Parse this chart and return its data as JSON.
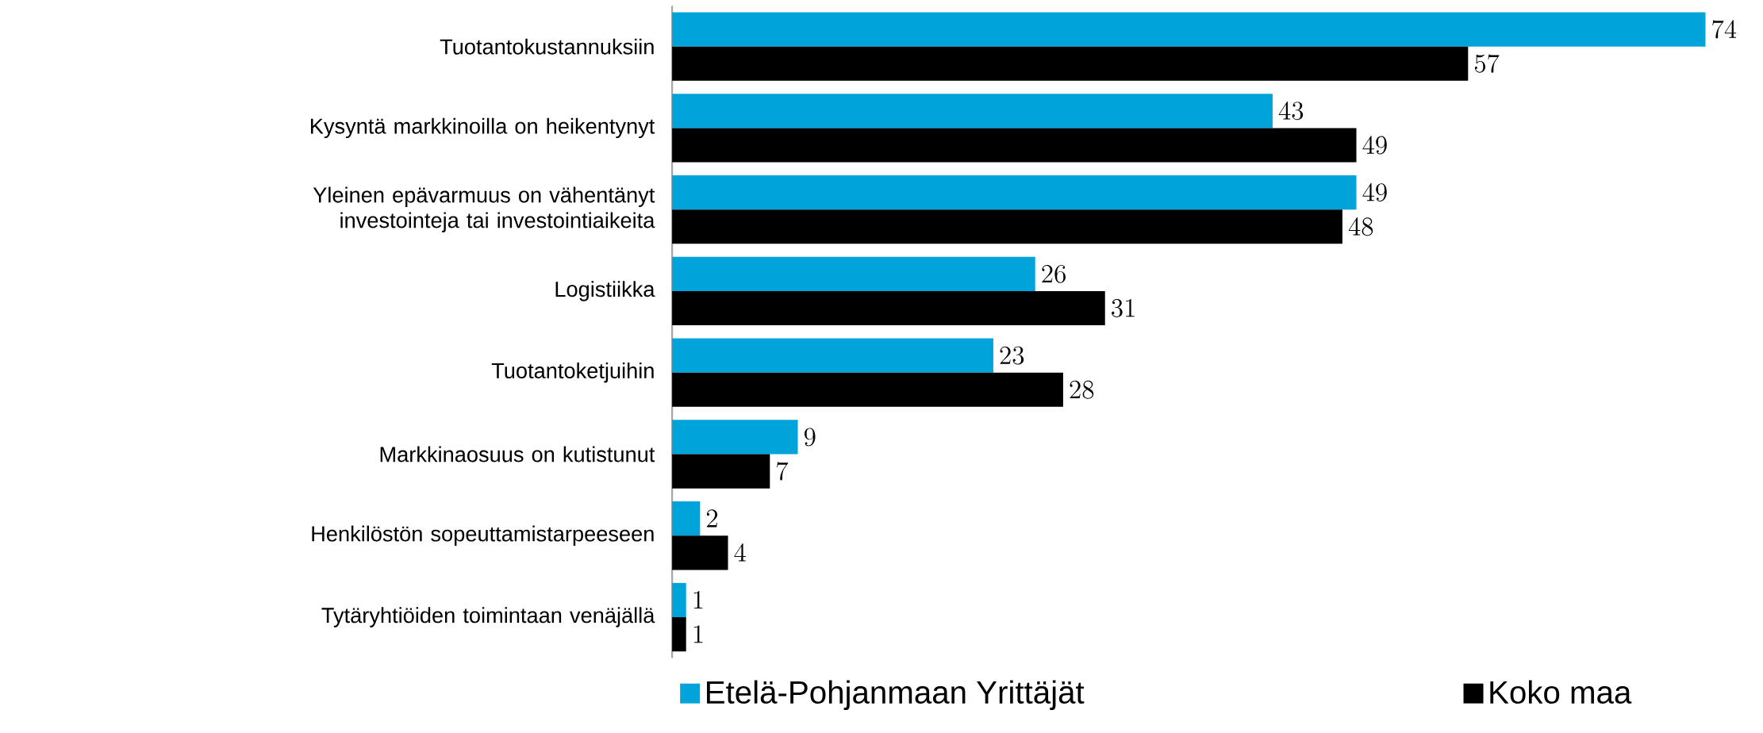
{
  "chart_data": {
    "type": "bar",
    "orientation": "horizontal",
    "data_labels": true,
    "legend": "bottom",
    "categories": [
      "Tuotantokustannuksiin",
      "Kysyntä markkinoilla on heikentynyt",
      "Yleinen epävarmuus on vähentänyt investointeja tai investointiaikeita",
      "Logistiikka",
      "Tuotantoketjuihin",
      "Markkinaosuus on kutistunut",
      "Henkilöstön sopeuttamistarpeeseen",
      "Tytäryhtiöiden toimintaan venäjällä"
    ],
    "series": [
      {
        "name": "Etelä-Pohjanmaan Yrittäjät",
        "color": "#00a3da",
        "values": [
          74,
          43,
          49,
          26,
          23,
          9,
          2,
          1
        ]
      },
      {
        "name": "Koko maa",
        "color": "#000000",
        "values": [
          57,
          49,
          48,
          31,
          28,
          7,
          4,
          1
        ]
      }
    ]
  }
}
